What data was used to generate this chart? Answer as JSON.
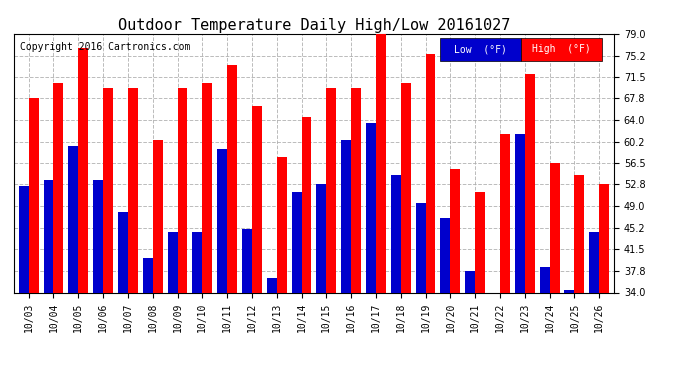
{
  "title": "Outdoor Temperature Daily High/Low 20161027",
  "copyright": "Copyright 2016 Cartronics.com",
  "legend_low": "Low  (°F)",
  "legend_high": "High  (°F)",
  "dates": [
    "10/03",
    "10/04",
    "10/05",
    "10/06",
    "10/07",
    "10/08",
    "10/09",
    "10/10",
    "10/11",
    "10/12",
    "10/13",
    "10/14",
    "10/15",
    "10/16",
    "10/17",
    "10/18",
    "10/19",
    "10/20",
    "10/21",
    "10/22",
    "10/23",
    "10/24",
    "10/25",
    "10/26"
  ],
  "highs": [
    67.8,
    70.5,
    76.5,
    69.5,
    69.5,
    60.5,
    69.5,
    70.5,
    73.5,
    66.5,
    57.5,
    64.5,
    69.5,
    69.5,
    79.5,
    70.5,
    75.5,
    55.5,
    51.5,
    61.5,
    72.0,
    56.5,
    54.5,
    52.8
  ],
  "lows": [
    52.5,
    53.5,
    59.5,
    53.5,
    48.0,
    40.0,
    44.5,
    44.5,
    59.0,
    45.0,
    36.5,
    51.5,
    52.8,
    60.5,
    63.5,
    54.5,
    49.5,
    47.0,
    37.8,
    34.0,
    61.5,
    38.5,
    34.5,
    44.5
  ],
  "bar_color_high": "#ff0000",
  "bar_color_low": "#0000cc",
  "bg_color": "#ffffff",
  "plot_bg_color": "#ffffff",
  "grid_color": "#aaaaaa",
  "title_fontsize": 11,
  "copyright_fontsize": 7,
  "tick_fontsize": 7,
  "ymin": 34.0,
  "ymax": 79.0,
  "yticks": [
    34.0,
    37.8,
    41.5,
    45.2,
    49.0,
    52.8,
    56.5,
    60.2,
    64.0,
    67.8,
    71.5,
    75.2,
    79.0
  ]
}
